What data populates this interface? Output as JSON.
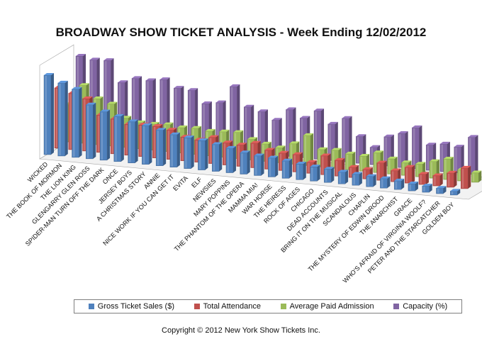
{
  "chart_data": {
    "type": "bar",
    "title": "BROADWAY SHOW TICKET ANALYSIS - Week Ending 12/02/2012",
    "categories": [
      "WICKED",
      "THE BOOK OF MORMON",
      "THE LION KING",
      "GLENGARRY GLEN ROSS",
      "SPIDER-MAN TURN OFF THE DARK",
      "ONCE",
      "JERSEY BOYS",
      "A CHRISTMAS STORY",
      "ANNIE",
      "NICE WORK IF YOU CAN GET IT",
      "EVITA",
      "ELF",
      "NEWSIES",
      "MARY POPPINS",
      "THE PHANTOM OF THE OPERA",
      "MAMMA MIA!",
      "WAR HORSE",
      "THE HEIRESS",
      "ROCK OF AGES",
      "CHICAGO",
      "DEAD ACCOUNTS",
      "BRING IT ON THE MUSICAL",
      "SCANDALOUS",
      "CHAPLIN",
      "THE MYSTERY OF EDWIN DROOD",
      "THE ANARCHIST",
      "GRACE",
      "WHO'S AFRAID OF VIRGINIA WOOLF?",
      "PETER AND THE STARCATCHER",
      "GOLDEN BOY"
    ],
    "series": [
      {
        "name": "Gross Ticket Sales ($)",
        "color": "#4f81bd",
        "values": [
          100,
          92,
          86,
          68,
          61,
          57,
          52,
          49,
          45,
          41,
          39,
          37,
          34,
          31,
          27,
          25,
          24,
          22,
          20,
          18,
          17,
          15,
          14,
          13,
          12,
          11,
          9,
          8,
          7,
          5
        ]
      },
      {
        "name": "Total Attendance",
        "color": "#c0504d",
        "values": [
          76,
          71,
          66,
          47,
          44,
          39,
          40,
          40,
          37,
          30,
          28,
          33,
          28,
          27,
          31,
          24,
          22,
          22,
          14,
          24,
          20,
          13,
          12,
          22,
          14,
          20,
          13,
          13,
          18,
          26
        ]
      },
      {
        "name": "Average Paid Admission",
        "color": "#9bbb59",
        "values": [
          47,
          73,
          58,
          53,
          37,
          33,
          33,
          34,
          32,
          33,
          31,
          32,
          33,
          26,
          22,
          19,
          26,
          38,
          22,
          23,
          20,
          19,
          25,
          19,
          16,
          16,
          21,
          26,
          14,
          12
        ]
      },
      {
        "name": "Capacity (%)",
        "color": "#8064a2",
        "values": [
          100,
          97,
          98,
          72,
          79,
          78,
          81,
          72,
          71,
          56,
          59,
          81,
          57,
          53,
          44,
          59,
          50,
          61,
          46,
          55,
          34,
          22,
          37,
          43,
          52,
          32,
          35,
          33,
          47,
          50
        ]
      }
    ],
    "legend_position": "bottom",
    "grid": false
  },
  "copyright": "Copyright © 2012 New York Show Tickets Inc."
}
